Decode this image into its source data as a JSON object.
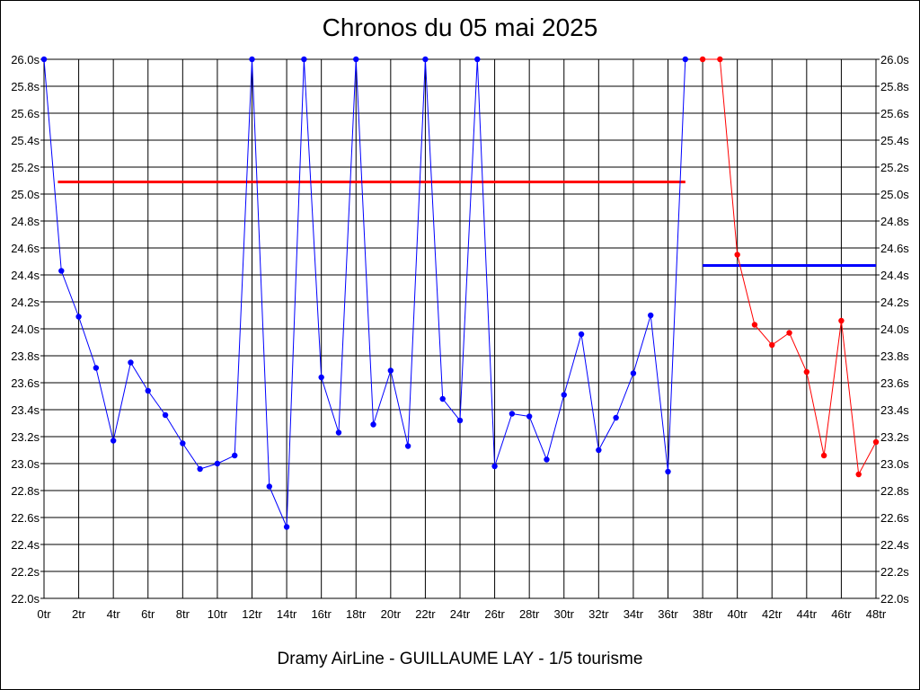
{
  "chart_title": "Chronos du 05 mai 2025",
  "footer": "Dramy AirLine - GUILLAUME LAY - 1/5 tourisme",
  "chart_data": {
    "type": "line",
    "title": "Chronos du 05 mai 2025",
    "xlabel": "",
    "ylabel": "",
    "xlim": [
      0,
      48
    ],
    "ylim": [
      22.0,
      26.0
    ],
    "grid": true,
    "x_ticks": [
      "0tr",
      "2tr",
      "4tr",
      "6tr",
      "8tr",
      "10tr",
      "12tr",
      "14tr",
      "16tr",
      "18tr",
      "20tr",
      "22tr",
      "24tr",
      "26tr",
      "28tr",
      "30tr",
      "32tr",
      "34tr",
      "36tr",
      "38tr",
      "40tr",
      "42tr",
      "44tr",
      "46tr",
      "48tr"
    ],
    "y_ticks": [
      "22.0s",
      "22.2s",
      "22.4s",
      "22.6s",
      "22.8s",
      "23.0s",
      "23.2s",
      "23.4s",
      "23.6s",
      "23.8s",
      "24.0s",
      "24.2s",
      "24.4s",
      "24.6s",
      "24.8s",
      "25.0s",
      "25.2s",
      "25.4s",
      "25.6s",
      "25.8s",
      "26.0s"
    ],
    "series": [
      {
        "color": "#0000ff",
        "x": [
          0,
          1,
          2,
          3,
          4,
          5,
          6,
          7,
          8,
          9,
          10,
          11,
          12,
          13,
          14,
          15,
          16,
          17,
          18,
          19,
          20,
          21,
          22,
          23,
          24,
          25,
          26,
          27,
          28,
          29,
          30,
          31,
          32,
          33,
          34,
          35,
          36,
          37
        ],
        "y": [
          26.0,
          24.43,
          24.09,
          23.71,
          23.17,
          23.75,
          23.54,
          23.36,
          23.15,
          22.96,
          23.0,
          23.06,
          26.0,
          22.83,
          22.53,
          26.0,
          23.64,
          23.23,
          26.0,
          23.29,
          23.69,
          23.13,
          26.0,
          23.48,
          23.32,
          26.0,
          22.98,
          23.37,
          23.35,
          23.03,
          23.51,
          23.96,
          23.1,
          23.34,
          23.67,
          24.1,
          22.94,
          26.0
        ]
      },
      {
        "color": "#ff0000",
        "x": [
          38,
          39,
          40,
          41,
          42,
          43,
          44,
          45,
          46,
          47,
          48
        ],
        "y": [
          26.0,
          26.0,
          24.55,
          24.03,
          23.88,
          23.97,
          23.68,
          23.06,
          24.06,
          22.92,
          23.16
        ]
      }
    ],
    "reference_lines": [
      {
        "color": "#ff0000",
        "y": 25.09,
        "x_from": 0.8,
        "x_to": 37
      },
      {
        "color": "#0000ff",
        "y": 24.47,
        "x_from": 38,
        "x_to": 48
      }
    ]
  }
}
